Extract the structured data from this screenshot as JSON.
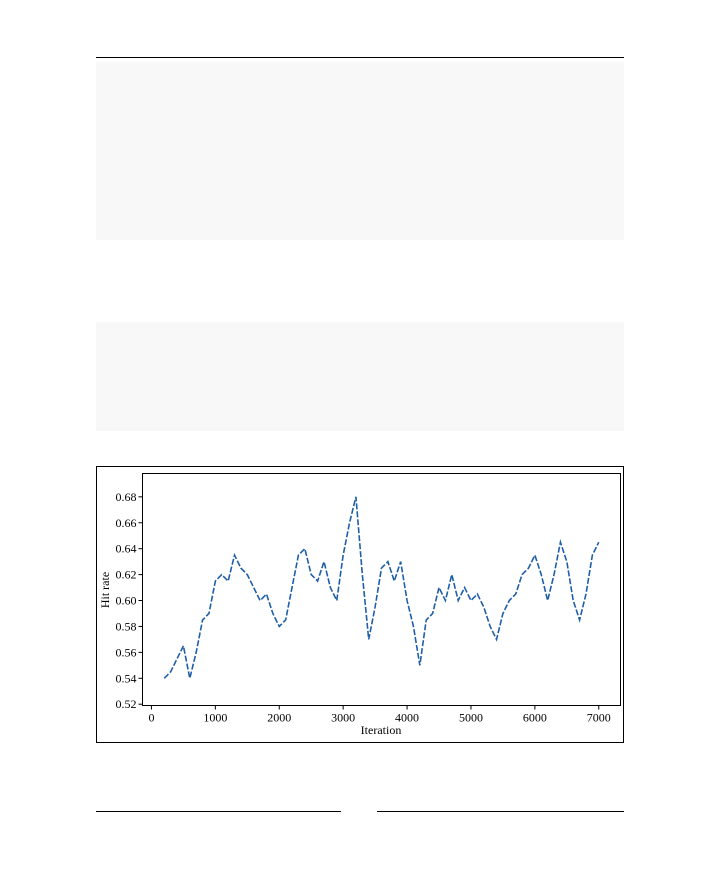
{
  "chart_data": {
    "type": "line",
    "xlabel": "Iteration",
    "ylabel": "Hit rate",
    "x": [
      200,
      300,
      400,
      500,
      600,
      700,
      800,
      900,
      1000,
      1100,
      1200,
      1300,
      1400,
      1500,
      1600,
      1700,
      1800,
      1900,
      2000,
      2100,
      2200,
      2300,
      2400,
      2500,
      2600,
      2700,
      2800,
      2900,
      3000,
      3100,
      3200,
      3300,
      3400,
      3500,
      3600,
      3700,
      3800,
      3900,
      4000,
      4100,
      4200,
      4300,
      4400,
      4500,
      4600,
      4700,
      4800,
      4900,
      5000,
      5100,
      5200,
      5300,
      5400,
      5500,
      5600,
      5700,
      5800,
      5900,
      6000,
      6100,
      6200,
      6300,
      6400,
      6500,
      6600,
      6700,
      6800,
      6900,
      7000
    ],
    "series": [
      {
        "color": "#1f5fa8",
        "values": [
          0.54,
          0.545,
          0.555,
          0.565,
          0.54,
          0.56,
          0.585,
          0.59,
          0.615,
          0.62,
          0.615,
          0.635,
          0.625,
          0.62,
          0.61,
          0.6,
          0.605,
          0.59,
          0.58,
          0.585,
          0.61,
          0.635,
          0.64,
          0.62,
          0.615,
          0.63,
          0.61,
          0.6,
          0.635,
          0.66,
          0.68,
          0.62,
          0.57,
          0.595,
          0.625,
          0.63,
          0.615,
          0.63,
          0.6,
          0.58,
          0.55,
          0.585,
          0.59,
          0.61,
          0.6,
          0.62,
          0.6,
          0.61,
          0.6,
          0.605,
          0.595,
          0.58,
          0.57,
          0.59,
          0.6,
          0.605,
          0.62,
          0.625,
          0.635,
          0.62,
          0.6,
          0.62,
          0.645,
          0.63,
          0.6,
          0.585,
          0.605,
          0.635,
          0.645
        ]
      }
    ],
    "xlim": [
      -140,
      7340
    ],
    "ylim": [
      0.519,
      0.698
    ],
    "xticks": [
      0,
      1000,
      2000,
      3000,
      4000,
      5000,
      6000,
      7000
    ],
    "yticks": [
      0.52,
      0.54,
      0.56,
      0.58,
      {
        "value": 0.6,
        "label": "0.60"
      },
      0.62,
      0.64,
      0.66,
      0.68
    ],
    "line_style": "dashed"
  }
}
